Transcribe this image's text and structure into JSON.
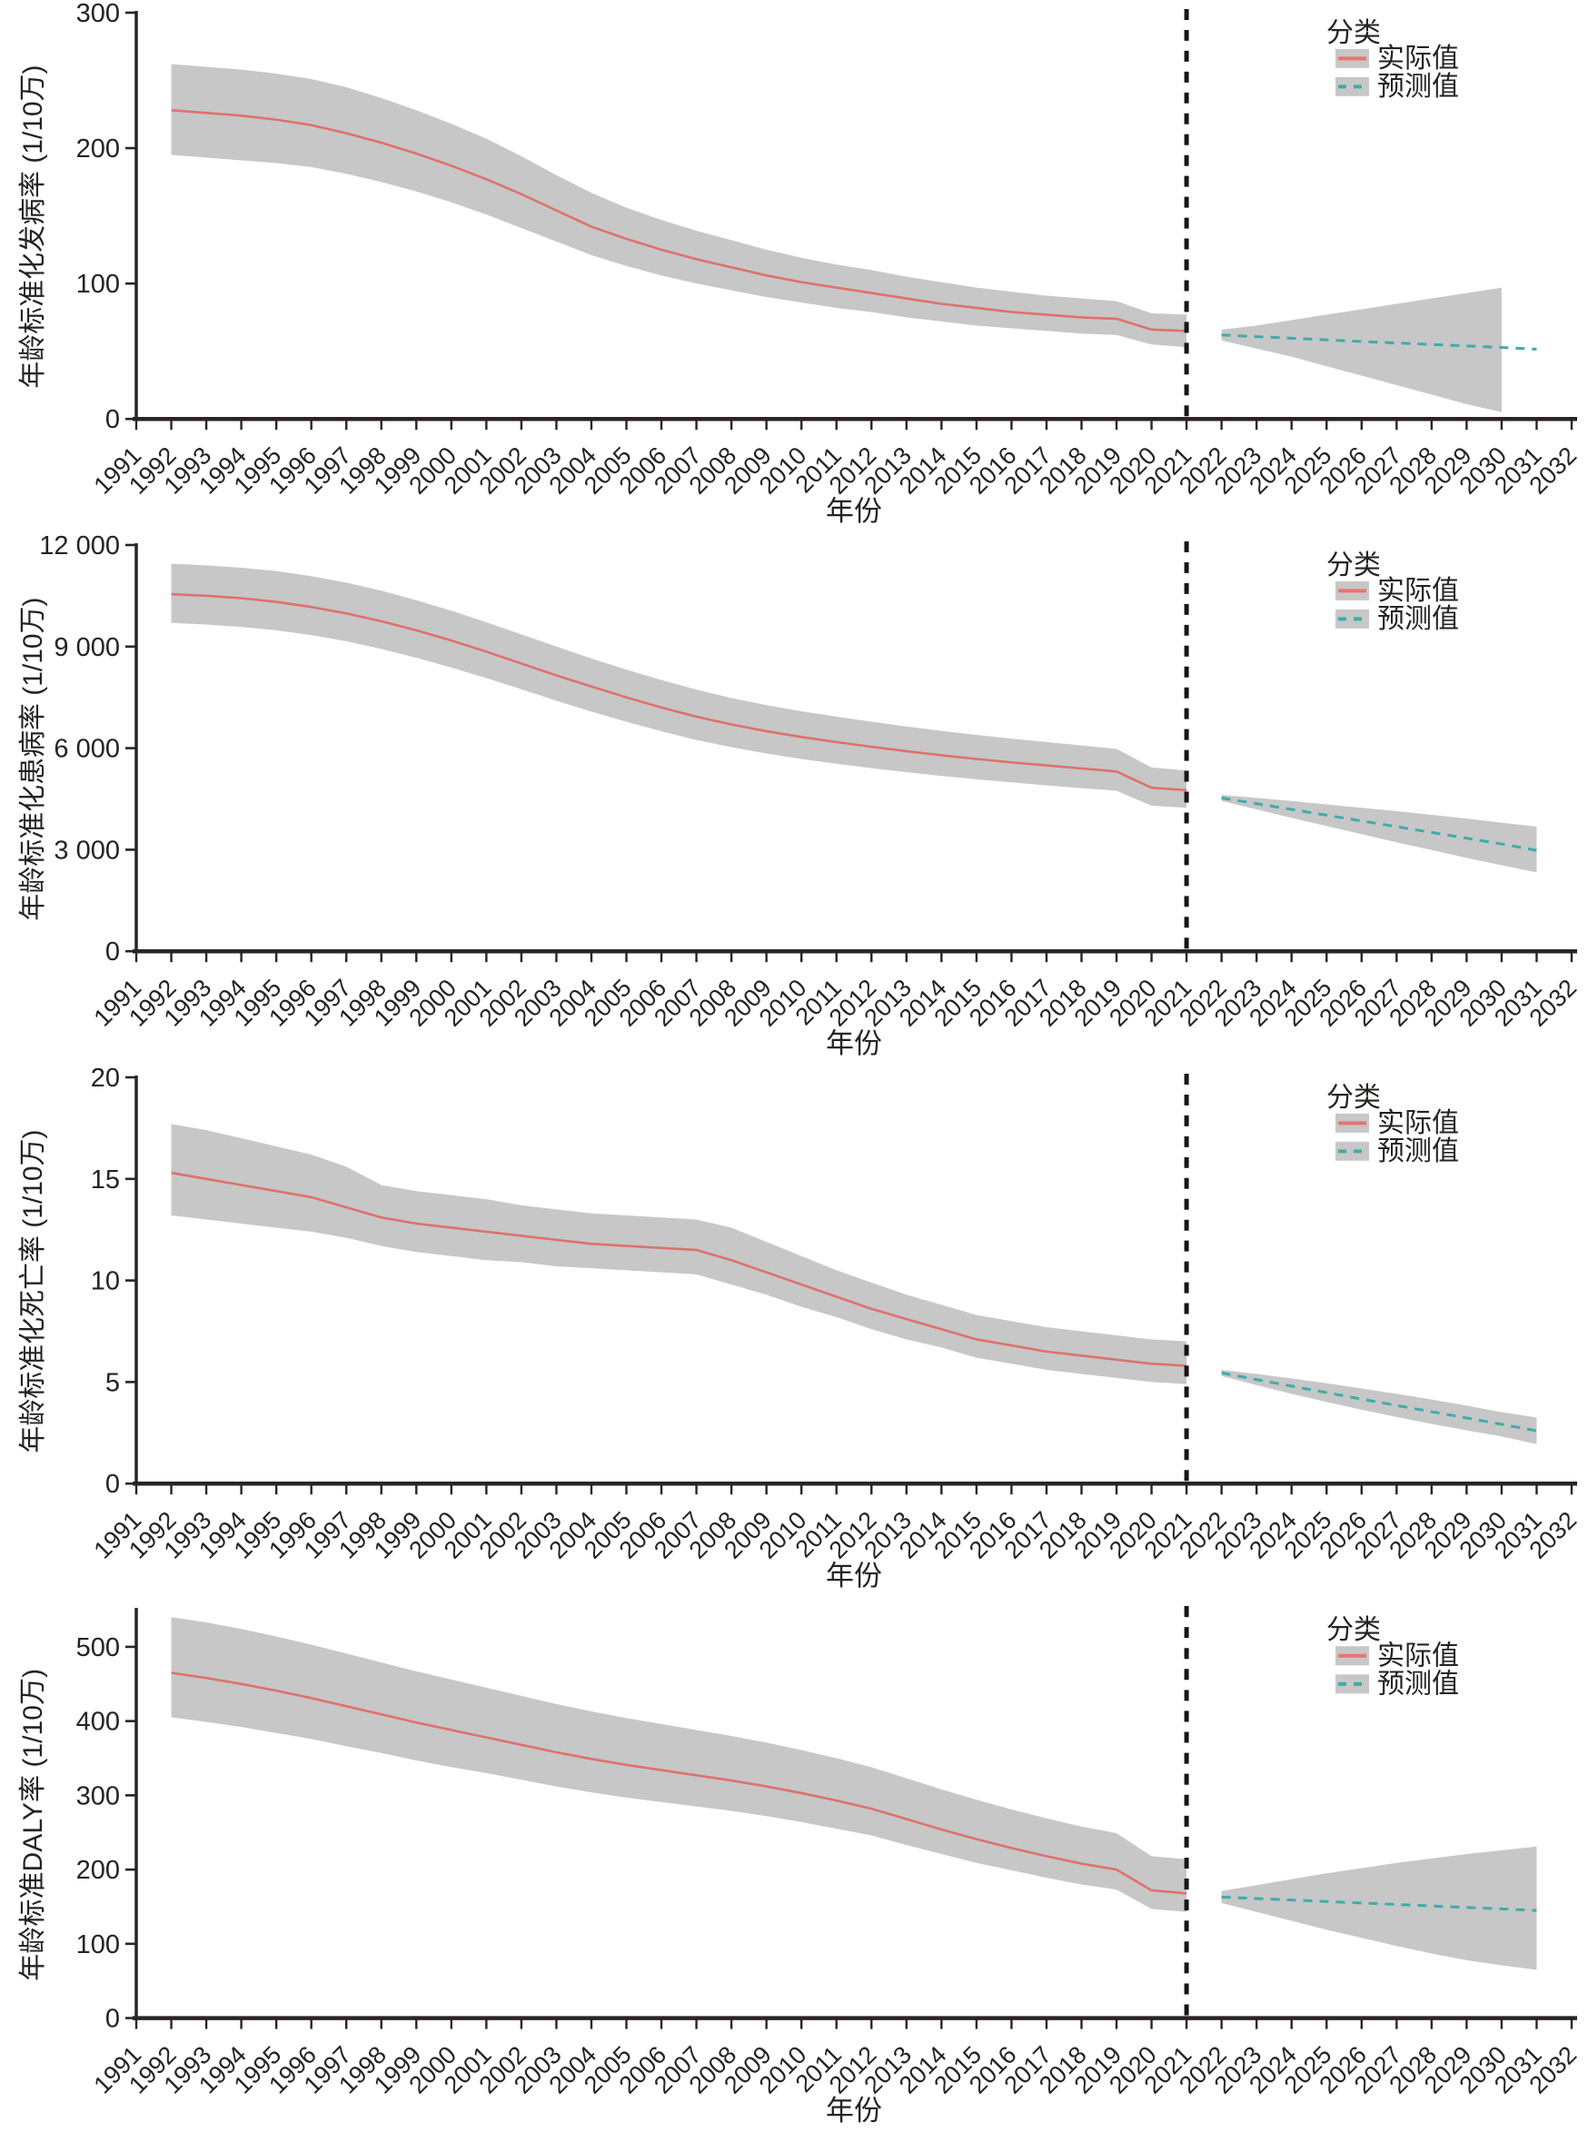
{
  "figure": {
    "x_axis_label": "年份",
    "legend": {
      "title": "分类",
      "actual_label": "实际值",
      "forecast_label": "预测值"
    },
    "colors": {
      "actual_line": "#DF716D",
      "forecast_line": "#3EACA8",
      "band": "#C7C7C7",
      "axis": "#2A2424",
      "text": "#272222",
      "divider": "#161616",
      "background": "#FFFFFF"
    },
    "x_start_year": 1991,
    "x_end_year": 2032,
    "actual_start": 1992,
    "actual_end": 2021,
    "forecast_start": 2022,
    "forecast_end": 2031,
    "divider_year": 2021,
    "xtick_labels": [
      "1991",
      "1992",
      "1993",
      "1994",
      "1995",
      "1996",
      "1997",
      "1998",
      "1999",
      "2000",
      "2001",
      "2002",
      "2003",
      "2004",
      "2005",
      "2006",
      "2007",
      "2008",
      "2009",
      "2010",
      "2011",
      "2012",
      "2013",
      "2014",
      "2015",
      "2016",
      "2017",
      "2018",
      "2019",
      "2020",
      "2021",
      "2022",
      "2023",
      "2024",
      "2025",
      "2026",
      "2027",
      "2028",
      "2029",
      "2030",
      "2031",
      "2032"
    ]
  },
  "chart_data": [
    {
      "type": "line",
      "name": "incidence",
      "title": "",
      "xlabel": "年份",
      "ylabel": "年龄标准化发病率 (1/10万)",
      "ylim": [
        0,
        300
      ],
      "yticks": [
        0,
        100,
        200,
        300
      ],
      "ytick_labels": [
        "0",
        "100",
        "200",
        "300"
      ],
      "legend_position": "top-right",
      "grid": false,
      "actual": {
        "mean": [
          228,
          226,
          224,
          221,
          217,
          211,
          204,
          196,
          187,
          177,
          166,
          154,
          142,
          133,
          125,
          118,
          112,
          106,
          101,
          97,
          93,
          89,
          85,
          82,
          79,
          77,
          75,
          74,
          66,
          65
        ],
        "upper": [
          262,
          260,
          258,
          255,
          251,
          245,
          237,
          228,
          218,
          207,
          194,
          180,
          167,
          156,
          147,
          139,
          132,
          125,
          119,
          114,
          110,
          105,
          101,
          97,
          94,
          91,
          89,
          87,
          78,
          77
        ],
        "lower": [
          195,
          193,
          191,
          189,
          186,
          181,
          175,
          168,
          160,
          151,
          141,
          131,
          121,
          113,
          106,
          100,
          95,
          90,
          86,
          82,
          79,
          75,
          72,
          69,
          67,
          65,
          63,
          62,
          55,
          53
        ]
      },
      "forecast": {
        "mean": [
          62.0,
          60.8,
          59.6,
          58.4,
          57.2,
          56.1,
          55.0,
          53.9,
          52.8,
          51.5
        ],
        "band_end_year": 2030,
        "lower": [
          58,
          52,
          46,
          39,
          32,
          25,
          18,
          11,
          5
        ],
        "upper": [
          66,
          69,
          73,
          77,
          81,
          85,
          89,
          93,
          97
        ]
      }
    },
    {
      "type": "line",
      "name": "prevalence",
      "title": "",
      "xlabel": "年份",
      "ylabel": "年龄标准化患病率 (1/10万)",
      "ylim": [
        0,
        12000
      ],
      "yticks": [
        0,
        3000,
        6000,
        9000,
        12000
      ],
      "ytick_labels": [
        "0",
        "3 000",
        "6 000",
        "9 000",
        "12 000"
      ],
      "legend_position": "top-right",
      "grid": false,
      "actual": {
        "mean": [
          10550,
          10500,
          10430,
          10320,
          10170,
          9980,
          9750,
          9480,
          9180,
          8850,
          8500,
          8150,
          7820,
          7500,
          7200,
          6930,
          6700,
          6500,
          6330,
          6180,
          6040,
          5910,
          5790,
          5680,
          5580,
          5490,
          5400,
          5310,
          4830,
          4760
        ],
        "upper": [
          11450,
          11400,
          11330,
          11230,
          11080,
          10890,
          10650,
          10370,
          10060,
          9720,
          9360,
          9000,
          8650,
          8320,
          8010,
          7730,
          7480,
          7270,
          7090,
          6930,
          6780,
          6640,
          6510,
          6390,
          6280,
          6180,
          6080,
          5980,
          5430,
          5340
        ],
        "lower": [
          9700,
          9650,
          9580,
          9480,
          9340,
          9160,
          8930,
          8670,
          8380,
          8070,
          7740,
          7400,
          7080,
          6780,
          6500,
          6240,
          6030,
          5840,
          5680,
          5540,
          5410,
          5290,
          5180,
          5080,
          4990,
          4900,
          4820,
          4740,
          4300,
          4240
        ]
      },
      "forecast": {
        "mean": [
          4530,
          4360,
          4190,
          4020,
          3850,
          3680,
          3510,
          3340,
          3170,
          2980
        ],
        "band_end_year": 2031,
        "lower": [
          4440,
          4190,
          3940,
          3700,
          3460,
          3220,
          2990,
          2760,
          2540,
          2330
        ],
        "upper": [
          4620,
          4530,
          4440,
          4340,
          4240,
          4140,
          4030,
          3920,
          3800,
          3680
        ]
      }
    },
    {
      "type": "line",
      "name": "mortality",
      "title": "",
      "xlabel": "年份",
      "ylabel": "年龄标准化死亡率 (1/10万)",
      "ylim": [
        0,
        20
      ],
      "yticks": [
        0,
        5,
        10,
        15,
        20
      ],
      "ytick_labels": [
        "0",
        "5",
        "10",
        "15",
        "20"
      ],
      "legend_position": "top-right",
      "grid": false,
      "actual": {
        "mean": [
          15.3,
          15.0,
          14.7,
          14.4,
          14.1,
          13.6,
          13.1,
          12.8,
          12.6,
          12.4,
          12.2,
          12.0,
          11.8,
          11.7,
          11.6,
          11.5,
          11.0,
          10.4,
          9.8,
          9.2,
          8.6,
          8.1,
          7.6,
          7.1,
          6.8,
          6.5,
          6.3,
          6.1,
          5.9,
          5.8
        ],
        "upper": [
          17.7,
          17.4,
          17.0,
          16.6,
          16.2,
          15.6,
          14.7,
          14.4,
          14.2,
          14.0,
          13.7,
          13.5,
          13.3,
          13.2,
          13.1,
          13.0,
          12.6,
          11.9,
          11.2,
          10.5,
          9.9,
          9.3,
          8.8,
          8.3,
          8.0,
          7.7,
          7.5,
          7.3,
          7.1,
          7.0
        ],
        "lower": [
          13.2,
          13.0,
          12.8,
          12.6,
          12.4,
          12.1,
          11.7,
          11.4,
          11.2,
          11.0,
          10.9,
          10.7,
          10.6,
          10.5,
          10.4,
          10.3,
          9.8,
          9.3,
          8.7,
          8.2,
          7.6,
          7.1,
          6.7,
          6.2,
          5.9,
          5.6,
          5.4,
          5.2,
          5.0,
          4.9
        ]
      },
      "forecast": {
        "mean": [
          5.45,
          5.12,
          4.8,
          4.48,
          4.16,
          3.85,
          3.54,
          3.23,
          2.92,
          2.6
        ],
        "band_end_year": 2031,
        "lower": [
          5.3,
          4.85,
          4.42,
          4.02,
          3.64,
          3.28,
          2.94,
          2.62,
          2.32,
          1.95
        ],
        "upper": [
          5.6,
          5.4,
          5.18,
          4.94,
          4.68,
          4.42,
          4.14,
          3.84,
          3.52,
          3.25
        ]
      }
    },
    {
      "type": "line",
      "name": "daly",
      "title": "",
      "xlabel": "年份",
      "ylabel": "年龄标准DALY率 (1/10万)",
      "ylim": [
        0,
        550
      ],
      "yticks": [
        0,
        100,
        200,
        300,
        400,
        500
      ],
      "ytick_labels": [
        "0",
        "100",
        "200",
        "300",
        "400",
        "500"
      ],
      "legend_position": "top-right",
      "grid": false,
      "actual": {
        "mean": [
          465,
          458,
          450,
          441,
          431,
          420,
          409,
          398,
          388,
          378,
          368,
          358,
          349,
          341,
          334,
          327,
          320,
          312,
          303,
          293,
          282,
          268,
          254,
          241,
          229,
          218,
          208,
          200,
          172,
          168
        ],
        "upper": [
          540,
          533,
          524,
          514,
          503,
          491,
          479,
          467,
          456,
          445,
          434,
          423,
          413,
          404,
          396,
          388,
          380,
          371,
          361,
          350,
          338,
          323,
          308,
          294,
          281,
          269,
          258,
          249,
          218,
          214
        ],
        "lower": [
          405,
          399,
          392,
          384,
          376,
          366,
          357,
          347,
          338,
          330,
          321,
          312,
          304,
          297,
          291,
          285,
          279,
          272,
          264,
          255,
          246,
          233,
          221,
          209,
          199,
          189,
          180,
          173,
          147,
          143
        ]
      },
      "forecast": {
        "mean": [
          163,
          161,
          159,
          157,
          155,
          153,
          151,
          149,
          147,
          145
        ],
        "band_end_year": 2031,
        "lower": [
          155,
          143,
          131,
          119,
          108,
          97,
          87,
          78,
          71,
          65
        ],
        "upper": [
          171,
          179,
          187,
          195,
          202,
          209,
          215,
          221,
          226,
          231
        ]
      }
    }
  ]
}
